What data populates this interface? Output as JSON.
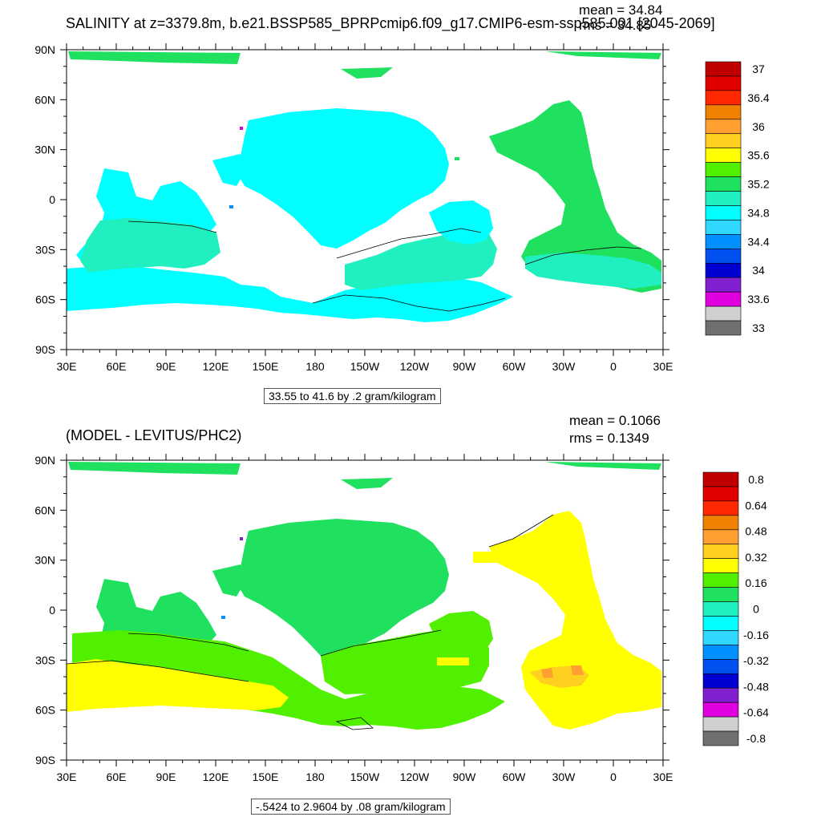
{
  "chart_data": [
    {
      "type": "heatmap",
      "title": "SALINITY at z=3379.8m, b.e21.BSSP585_BPRPcmip6.f09_g17.CMIP6-esm-ssp585.001 [2045-2069]",
      "stats": {
        "mean": "mean = 34.84",
        "rms": "rms = 34.85"
      },
      "contour_note": "33.55 to 41.6 by .2 gram/kilogram",
      "x_ticks": [
        "30E",
        "60E",
        "90E",
        "120E",
        "150E",
        "180",
        "150W",
        "120W",
        "90W",
        "60W",
        "30W",
        "0",
        "30E"
      ],
      "y_ticks": [
        "90N",
        "60N",
        "30N",
        "0",
        "30S",
        "60S",
        "90S"
      ],
      "colorbar": {
        "labels": [
          "37",
          "36.4",
          "36",
          "35.6",
          "35.2",
          "34.8",
          "34.4",
          "34",
          "33.6",
          "33"
        ],
        "colors": [
          "#c00000",
          "#e00000",
          "#ff2800",
          "#f08000",
          "#ffa030",
          "#ffd020",
          "#ffff00",
          "#50f000",
          "#20e060",
          "#20f0c0",
          "#00ffff",
          "#30d8ff",
          "#0090ff",
          "#0050f0",
          "#0000d0",
          "#8020d0",
          "#e000e0",
          "#d0d0d0",
          "#707070"
        ]
      }
    },
    {
      "type": "heatmap",
      "title": "(MODEL - LEVITUS/PHC2)",
      "stats": {
        "mean": "mean = 0.1066",
        "rms": "rms = 0.1349"
      },
      "contour_note": "-.5424 to 2.9604 by .08 gram/kilogram",
      "x_ticks": [
        "30E",
        "60E",
        "90E",
        "120E",
        "150E",
        "180",
        "150W",
        "120W",
        "90W",
        "60W",
        "30W",
        "0",
        "30E"
      ],
      "y_ticks": [
        "90N",
        "60N",
        "30N",
        "0",
        "30S",
        "60S",
        "90S"
      ],
      "colorbar": {
        "labels": [
          "0.8",
          "0.64",
          "0.48",
          "0.32",
          "0.16",
          "0",
          "-0.16",
          "-0.32",
          "-0.48",
          "-0.64",
          "-0.8"
        ],
        "colors": [
          "#c00000",
          "#e00000",
          "#ff2800",
          "#f08000",
          "#ffa030",
          "#ffd020",
          "#ffff00",
          "#50f000",
          "#20e060",
          "#20f0c0",
          "#00ffff",
          "#30d8ff",
          "#0090ff",
          "#0050f0",
          "#0000d0",
          "#8020d0",
          "#e000e0",
          "#d0d0d0",
          "#707070"
        ]
      }
    }
  ]
}
